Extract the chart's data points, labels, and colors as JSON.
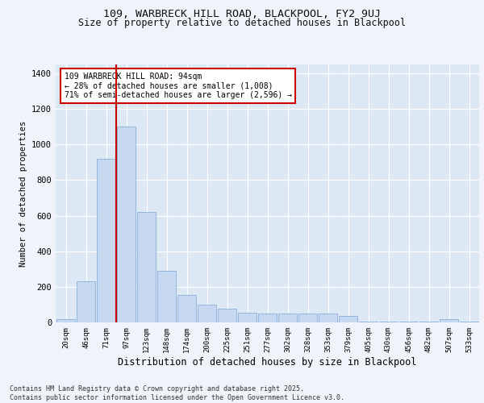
{
  "title1": "109, WARBRECK HILL ROAD, BLACKPOOL, FY2 9UJ",
  "title2": "Size of property relative to detached houses in Blackpool",
  "xlabel": "Distribution of detached houses by size in Blackpool",
  "ylabel": "Number of detached properties",
  "categories": [
    "20sqm",
    "46sqm",
    "71sqm",
    "97sqm",
    "123sqm",
    "148sqm",
    "174sqm",
    "200sqm",
    "225sqm",
    "251sqm",
    "277sqm",
    "302sqm",
    "328sqm",
    "353sqm",
    "379sqm",
    "405sqm",
    "430sqm",
    "456sqm",
    "482sqm",
    "507sqm",
    "533sqm"
  ],
  "values": [
    18,
    230,
    920,
    1100,
    620,
    290,
    155,
    100,
    75,
    55,
    50,
    50,
    50,
    50,
    35,
    5,
    5,
    5,
    5,
    18,
    5
  ],
  "bar_color": "#c6d9f0",
  "bar_edge_color": "#7da6d4",
  "vline_color": "#cc0000",
  "vline_pos": 2.5,
  "annotation_text": "109 WARBRECK HILL ROAD: 94sqm\n← 28% of detached houses are smaller (1,008)\n71% of semi-detached houses are larger (2,596) →",
  "annotation_box_color": "#cc0000",
  "ylim": [
    0,
    1450
  ],
  "yticks": [
    0,
    200,
    400,
    600,
    800,
    1000,
    1200,
    1400
  ],
  "bg_color": "#dde8f5",
  "grid_color": "#ffffff",
  "fig_bg_color": "#f0f4fa",
  "footer": "Contains HM Land Registry data © Crown copyright and database right 2025.\nContains public sector information licensed under the Open Government Licence v3.0."
}
